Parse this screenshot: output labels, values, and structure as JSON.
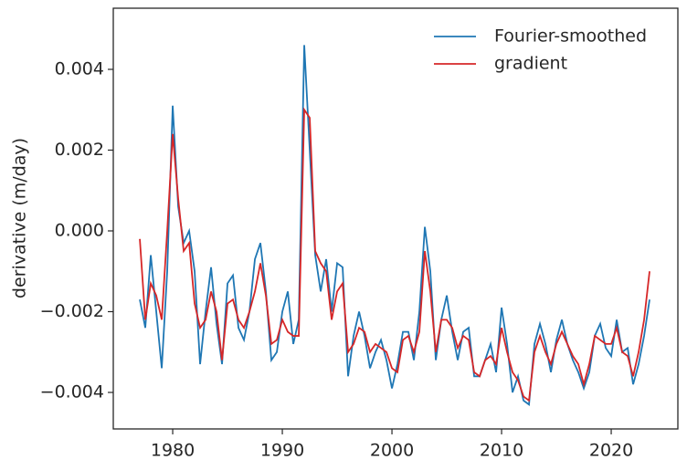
{
  "chart_data": {
    "type": "line",
    "ylabel": "derivative (m/day)",
    "x": [
      1977.0,
      1977.5,
      1978.0,
      1978.5,
      1979.0,
      1979.5,
      1980.0,
      1980.5,
      1981.0,
      1981.5,
      1982.0,
      1982.5,
      1983.0,
      1983.5,
      1984.0,
      1984.5,
      1985.0,
      1985.5,
      1986.0,
      1986.5,
      1987.0,
      1987.5,
      1988.0,
      1988.5,
      1989.0,
      1989.5,
      1990.0,
      1990.5,
      1991.0,
      1991.5,
      1992.0,
      1992.5,
      1993.0,
      1993.5,
      1994.0,
      1994.5,
      1995.0,
      1995.5,
      1996.0,
      1996.5,
      1997.0,
      1997.5,
      1998.0,
      1998.5,
      1999.0,
      1999.5,
      2000.0,
      2000.5,
      2001.0,
      2001.5,
      2002.0,
      2002.5,
      2003.0,
      2003.5,
      2004.0,
      2004.5,
      2005.0,
      2005.5,
      2006.0,
      2006.5,
      2007.0,
      2007.5,
      2008.0,
      2008.5,
      2009.0,
      2009.5,
      2010.0,
      2010.5,
      2011.0,
      2011.5,
      2012.0,
      2012.5,
      2013.0,
      2013.5,
      2014.0,
      2014.5,
      2015.0,
      2015.5,
      2016.0,
      2016.5,
      2017.0,
      2017.5,
      2018.0,
      2018.5,
      2019.0,
      2019.5,
      2020.0,
      2020.5,
      2021.0,
      2021.5,
      2022.0,
      2022.5,
      2023.0,
      2023.5
    ],
    "series": [
      {
        "name": "Fourier-smoothed",
        "color": "#1f77b4",
        "values": [
          -0.0017,
          -0.0024,
          -0.0006,
          -0.002,
          -0.0034,
          -0.001,
          0.0031,
          0.0006,
          -0.0003,
          0.0,
          -0.001,
          -0.0033,
          -0.002,
          -0.0009,
          -0.0023,
          -0.0033,
          -0.0013,
          -0.0011,
          -0.0024,
          -0.0027,
          -0.002,
          -0.0007,
          -0.0003,
          -0.0015,
          -0.0032,
          -0.003,
          -0.002,
          -0.0015,
          -0.0028,
          -0.0022,
          0.0046,
          0.002,
          -0.0006,
          -0.0015,
          -0.0007,
          -0.002,
          -0.0008,
          -0.0009,
          -0.0036,
          -0.0026,
          -0.002,
          -0.0026,
          -0.0034,
          -0.003,
          -0.0027,
          -0.0032,
          -0.0039,
          -0.0033,
          -0.0025,
          -0.0025,
          -0.0032,
          -0.002,
          0.0001,
          -0.001,
          -0.0032,
          -0.0022,
          -0.0016,
          -0.0025,
          -0.0032,
          -0.0025,
          -0.0024,
          -0.0036,
          -0.0036,
          -0.0032,
          -0.0028,
          -0.0035,
          -0.0019,
          -0.0028,
          -0.004,
          -0.0036,
          -0.0042,
          -0.0043,
          -0.0028,
          -0.0023,
          -0.0028,
          -0.0035,
          -0.0027,
          -0.0022,
          -0.0028,
          -0.0032,
          -0.0035,
          -0.0039,
          -0.0035,
          -0.0026,
          -0.0023,
          -0.0029,
          -0.0031,
          -0.0022,
          -0.003,
          -0.0029,
          -0.0038,
          -0.0033,
          -0.0026,
          -0.0017
        ]
      },
      {
        "name": "gradient",
        "color": "#d62728",
        "values": [
          -0.0002,
          -0.0022,
          -0.0013,
          -0.0016,
          -0.0022,
          0.0,
          0.0024,
          0.0008,
          -0.0005,
          -0.0003,
          -0.0018,
          -0.0024,
          -0.0022,
          -0.0015,
          -0.002,
          -0.0032,
          -0.0018,
          -0.0017,
          -0.0022,
          -0.0024,
          -0.002,
          -0.0015,
          -0.0008,
          -0.0016,
          -0.0028,
          -0.0027,
          -0.0022,
          -0.0025,
          -0.0026,
          -0.0026,
          0.003,
          0.0028,
          -0.0005,
          -0.0008,
          -0.001,
          -0.0022,
          -0.0015,
          -0.0013,
          -0.003,
          -0.0028,
          -0.0024,
          -0.0025,
          -0.003,
          -0.0028,
          -0.0029,
          -0.003,
          -0.0034,
          -0.0035,
          -0.0027,
          -0.0026,
          -0.003,
          -0.0025,
          -0.0005,
          -0.0015,
          -0.003,
          -0.0022,
          -0.0022,
          -0.0024,
          -0.0029,
          -0.0026,
          -0.0027,
          -0.0035,
          -0.0036,
          -0.0032,
          -0.0031,
          -0.0033,
          -0.0024,
          -0.003,
          -0.0035,
          -0.0037,
          -0.0041,
          -0.0042,
          -0.003,
          -0.0026,
          -0.003,
          -0.0033,
          -0.0028,
          -0.0025,
          -0.0028,
          -0.0031,
          -0.0033,
          -0.0038,
          -0.0033,
          -0.0026,
          -0.0027,
          -0.0028,
          -0.0028,
          -0.0024,
          -0.003,
          -0.0031,
          -0.0036,
          -0.003,
          -0.0022,
          -0.001
        ]
      }
    ],
    "xlim": [
      1974.58,
      2026.08
    ],
    "ylim": [
      -0.004904,
      0.005514
    ],
    "xticks": [
      1980,
      1990,
      2000,
      2010,
      2020
    ],
    "yticks": [
      {
        "value": -0.004,
        "label": "−0.004"
      },
      {
        "value": -0.002,
        "label": "−0.002"
      },
      {
        "value": 0,
        "label": "0.000"
      },
      {
        "value": 0.002,
        "label": "0.002"
      },
      {
        "value": 0.004,
        "label": "0.004"
      }
    ],
    "legend": "upper right"
  }
}
